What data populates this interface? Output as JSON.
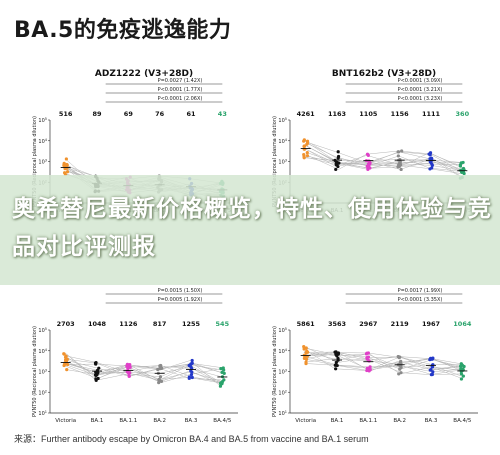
{
  "page_title": "BA.5的免疫逃逸能力",
  "banner_text": "奥希替尼最新价格概览，特性、使用体验与竞品对比评测报",
  "source_note": "来源：Further antibody escape by Omicron BA.4 and BA.5 from vaccine and BA.1 serum",
  "chart_data": [
    {
      "type": "scatter",
      "title": "ADZ1222 (V3+28D)",
      "ylabel": "PVNT50 (Reciprocal plasma dilution)",
      "categories": [
        "Victoria",
        "BA.1",
        "BA.1.1",
        "BA.2",
        "BA.3",
        "BA.4/5"
      ],
      "gmt_labels": [
        "516",
        "89",
        "69",
        "76",
        "61",
        "43"
      ],
      "values": [
        516,
        89,
        69,
        76,
        61,
        43
      ],
      "ylim": [
        10,
        100000
      ],
      "yscale": "log",
      "annotations": [
        "P=0.0027 (1.42X)",
        "P<0.0001 (1.77X)",
        "P<0.0001 (2.06X)"
      ]
    },
    {
      "type": "scatter",
      "title": "BNT162b2 (V3+28D)",
      "ylabel": "PVNT50 (Reciprocal plasma dilution)",
      "categories": [
        "Victoria",
        "BA.1",
        "BA.1.1",
        "BA.2",
        "BA.3",
        "BA.4/5"
      ],
      "gmt_labels": [
        "4261",
        "1163",
        "1105",
        "1156",
        "1111",
        "360"
      ],
      "values": [
        4261,
        1163,
        1105,
        1156,
        1111,
        360
      ],
      "ylim": [
        10,
        100000
      ],
      "yscale": "log",
      "annotations": [
        "P<0.0001 (3.09X)",
        "P<0.0001 (3.21X)",
        "P<0.0001 (3.23X)"
      ]
    },
    {
      "type": "scatter",
      "title": "",
      "ylabel": "PVNT50 (Reciprocal plasma dilution)",
      "categories": [
        "Victoria",
        "BA.1",
        "BA.1.1",
        "BA.2",
        "BA.3",
        "BA.4/5"
      ],
      "gmt_labels": [
        "2703",
        "1048",
        "1126",
        "817",
        "1255",
        "545"
      ],
      "values": [
        2703,
        1048,
        1126,
        817,
        1255,
        545
      ],
      "ylim": [
        10,
        100000
      ],
      "yscale": "log",
      "annotations": [
        "P=0.0015 (1.50X)",
        "P=0.0005 (1.92X)"
      ]
    },
    {
      "type": "scatter",
      "title": "",
      "ylabel": "PVNT50 (Reciprocal plasma dilution)",
      "categories": [
        "Victoria",
        "BA.1",
        "BA.1.1",
        "BA.2",
        "BA.3",
        "BA.4/5"
      ],
      "gmt_labels": [
        "5861",
        "3563",
        "2967",
        "2119",
        "1967",
        "1064"
      ],
      "values": [
        5861,
        3563,
        2967,
        2119,
        1967,
        1064
      ],
      "ylim": [
        10,
        100000
      ],
      "yscale": "log",
      "annotations": [
        "P=0.0017 (1.99X)",
        "P<0.0001 (3.35X)"
      ]
    }
  ],
  "colors": {
    "Victoria": "#f0922e",
    "BA.1": "#111111",
    "BA.1.1": "#e040c8",
    "BA.2": "#8a8a8a",
    "BA.3": "#2338c8",
    "BA.4/5": "#2aa36b",
    "gmt_last": "#2aa36b"
  }
}
